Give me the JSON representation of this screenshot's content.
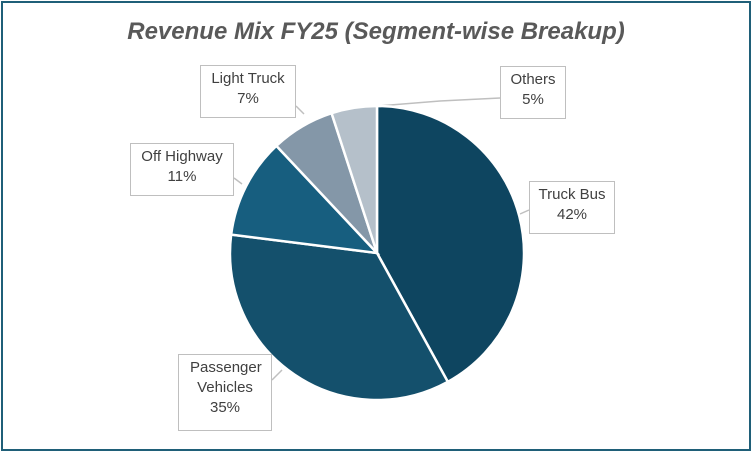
{
  "chart_data": {
    "type": "pie",
    "title": "Revenue Mix FY25 (Segment-wise Breakup)",
    "categories": [
      "Truck Bus",
      "Passenger Vehicles",
      "Off Highway",
      "Light Truck",
      "Others"
    ],
    "values": [
      42,
      35,
      11,
      7,
      5
    ],
    "value_labels": [
      "42%",
      "35%",
      "11%",
      "7%",
      "5%"
    ],
    "colors": [
      "#0e4560",
      "#14506c",
      "#175e7f",
      "#8497a8",
      "#b5c0ca"
    ],
    "start_angle": "12 o'clock",
    "direction": "clockwise",
    "legend": "none",
    "data_labels": "callouts"
  }
}
